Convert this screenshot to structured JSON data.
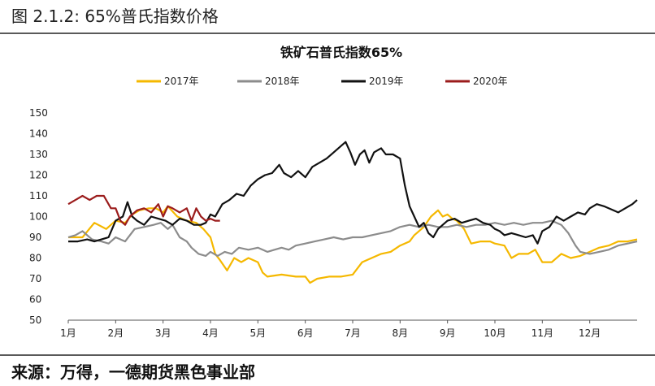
{
  "figure": {
    "caption": "图  2.1.2:    65%普氏指数价格",
    "source": "来源：万得，一德期货黑色事业部"
  },
  "chart_data": {
    "type": "line",
    "title": "铁矿石普氏指数65%",
    "xlabel": "",
    "ylabel": "",
    "x_ticks": [
      "1月",
      "2月",
      "3月",
      "4月",
      "5月",
      "6月",
      "7月",
      "8月",
      "9月",
      "10月",
      "11月",
      "12月"
    ],
    "y_ticks": [
      50,
      60,
      70,
      80,
      90,
      100,
      110,
      120,
      130,
      140,
      150
    ],
    "ylim": [
      50,
      150
    ],
    "xlim": [
      1,
      13
    ],
    "legend_position": "top",
    "grid": false,
    "series": [
      {
        "name": "2017年",
        "color": "#f5b800",
        "points": [
          [
            1,
            90
          ],
          [
            1.3,
            90
          ],
          [
            1.55,
            97
          ],
          [
            1.8,
            94
          ],
          [
            2.0,
            98
          ],
          [
            2.2,
            97
          ],
          [
            2.35,
            101
          ],
          [
            2.5,
            103
          ],
          [
            2.7,
            104
          ],
          [
            2.85,
            104
          ],
          [
            3.0,
            102
          ],
          [
            3.1,
            105
          ],
          [
            3.3,
            100
          ],
          [
            3.5,
            98
          ],
          [
            3.7,
            97
          ],
          [
            3.85,
            94
          ],
          [
            4.0,
            90
          ],
          [
            4.1,
            82
          ],
          [
            4.2,
            79
          ],
          [
            4.35,
            74
          ],
          [
            4.5,
            80
          ],
          [
            4.65,
            78
          ],
          [
            4.8,
            80
          ],
          [
            5.0,
            78
          ],
          [
            5.1,
            73
          ],
          [
            5.2,
            71
          ],
          [
            5.5,
            72
          ],
          [
            5.8,
            71
          ],
          [
            6.0,
            71
          ],
          [
            6.1,
            68
          ],
          [
            6.25,
            70
          ],
          [
            6.5,
            71
          ],
          [
            6.75,
            71
          ],
          [
            7.0,
            72
          ],
          [
            7.2,
            78
          ],
          [
            7.4,
            80
          ],
          [
            7.6,
            82
          ],
          [
            7.8,
            83
          ],
          [
            8.0,
            86
          ],
          [
            8.2,
            88
          ],
          [
            8.3,
            91
          ],
          [
            8.5,
            95
          ],
          [
            8.65,
            100
          ],
          [
            8.8,
            103
          ],
          [
            8.9,
            100
          ],
          [
            9.0,
            101
          ],
          [
            9.1,
            99
          ],
          [
            9.2,
            98
          ],
          [
            9.35,
            94
          ],
          [
            9.5,
            87
          ],
          [
            9.7,
            88
          ],
          [
            9.9,
            88
          ],
          [
            10.0,
            87
          ],
          [
            10.2,
            86
          ],
          [
            10.35,
            80
          ],
          [
            10.5,
            82
          ],
          [
            10.7,
            82
          ],
          [
            10.85,
            84
          ],
          [
            11.0,
            78
          ],
          [
            11.2,
            78
          ],
          [
            11.4,
            82
          ],
          [
            11.6,
            80
          ],
          [
            11.8,
            81
          ],
          [
            12.0,
            83
          ],
          [
            12.2,
            85
          ],
          [
            12.4,
            86
          ],
          [
            12.6,
            88
          ],
          [
            12.8,
            88
          ],
          [
            13,
            89
          ]
        ]
      },
      {
        "name": "2018年",
        "color": "#8c8c8c",
        "points": [
          [
            1,
            90
          ],
          [
            1.15,
            91
          ],
          [
            1.3,
            93
          ],
          [
            1.5,
            89
          ],
          [
            1.7,
            88
          ],
          [
            1.85,
            87
          ],
          [
            2.0,
            90
          ],
          [
            2.2,
            88
          ],
          [
            2.4,
            94
          ],
          [
            2.6,
            95
          ],
          [
            2.8,
            96
          ],
          [
            2.95,
            97
          ],
          [
            3.1,
            94
          ],
          [
            3.2,
            96
          ],
          [
            3.35,
            90
          ],
          [
            3.5,
            88
          ],
          [
            3.6,
            85
          ],
          [
            3.75,
            82
          ],
          [
            3.9,
            81
          ],
          [
            4.0,
            83
          ],
          [
            4.15,
            81
          ],
          [
            4.3,
            83
          ],
          [
            4.45,
            82
          ],
          [
            4.6,
            85
          ],
          [
            4.8,
            84
          ],
          [
            5.0,
            85
          ],
          [
            5.2,
            83
          ],
          [
            5.35,
            84
          ],
          [
            5.5,
            85
          ],
          [
            5.65,
            84
          ],
          [
            5.8,
            86
          ],
          [
            6.0,
            87
          ],
          [
            6.2,
            88
          ],
          [
            6.4,
            89
          ],
          [
            6.6,
            90
          ],
          [
            6.8,
            89
          ],
          [
            7.0,
            90
          ],
          [
            7.2,
            90
          ],
          [
            7.4,
            91
          ],
          [
            7.6,
            92
          ],
          [
            7.8,
            93
          ],
          [
            8.0,
            95
          ],
          [
            8.2,
            96
          ],
          [
            8.4,
            95
          ],
          [
            8.6,
            96
          ],
          [
            8.8,
            95
          ],
          [
            9.0,
            95
          ],
          [
            9.2,
            96
          ],
          [
            9.4,
            95
          ],
          [
            9.6,
            96
          ],
          [
            9.8,
            96
          ],
          [
            10.0,
            97
          ],
          [
            10.2,
            96
          ],
          [
            10.4,
            97
          ],
          [
            10.6,
            96
          ],
          [
            10.8,
            97
          ],
          [
            11.0,
            97
          ],
          [
            11.2,
            98
          ],
          [
            11.4,
            96
          ],
          [
            11.55,
            92
          ],
          [
            11.7,
            86
          ],
          [
            11.8,
            83
          ],
          [
            12.0,
            82
          ],
          [
            12.2,
            83
          ],
          [
            12.4,
            84
          ],
          [
            12.6,
            86
          ],
          [
            12.8,
            87
          ],
          [
            13,
            88
          ]
        ]
      },
      {
        "name": "2019年",
        "color": "#111111",
        "points": [
          [
            1,
            88
          ],
          [
            1.2,
            88
          ],
          [
            1.4,
            89
          ],
          [
            1.55,
            88
          ],
          [
            1.7,
            89
          ],
          [
            1.85,
            90
          ],
          [
            2.0,
            98
          ],
          [
            2.15,
            100
          ],
          [
            2.25,
            107
          ],
          [
            2.35,
            100
          ],
          [
            2.45,
            98
          ],
          [
            2.6,
            96
          ],
          [
            2.75,
            100
          ],
          [
            2.9,
            99
          ],
          [
            3.05,
            98
          ],
          [
            3.2,
            96
          ],
          [
            3.35,
            99
          ],
          [
            3.5,
            98
          ],
          [
            3.65,
            96
          ],
          [
            3.8,
            96
          ],
          [
            3.9,
            97
          ],
          [
            4.0,
            101
          ],
          [
            4.1,
            100
          ],
          [
            4.25,
            106
          ],
          [
            4.4,
            108
          ],
          [
            4.55,
            111
          ],
          [
            4.7,
            110
          ],
          [
            4.85,
            115
          ],
          [
            5.0,
            118
          ],
          [
            5.15,
            120
          ],
          [
            5.3,
            121
          ],
          [
            5.45,
            125
          ],
          [
            5.55,
            121
          ],
          [
            5.7,
            119
          ],
          [
            5.85,
            122
          ],
          [
            6.0,
            119
          ],
          [
            6.15,
            124
          ],
          [
            6.3,
            126
          ],
          [
            6.45,
            128
          ],
          [
            6.6,
            131
          ],
          [
            6.75,
            134
          ],
          [
            6.85,
            136
          ],
          [
            6.95,
            131
          ],
          [
            7.05,
            125
          ],
          [
            7.15,
            130
          ],
          [
            7.25,
            132
          ],
          [
            7.35,
            126
          ],
          [
            7.45,
            131
          ],
          [
            7.6,
            133
          ],
          [
            7.7,
            130
          ],
          [
            7.85,
            130
          ],
          [
            8.0,
            128
          ],
          [
            8.1,
            115
          ],
          [
            8.2,
            105
          ],
          [
            8.3,
            100
          ],
          [
            8.4,
            95
          ],
          [
            8.5,
            97
          ],
          [
            8.6,
            92
          ],
          [
            8.7,
            90
          ],
          [
            8.8,
            94
          ],
          [
            8.9,
            96
          ],
          [
            9.0,
            98
          ],
          [
            9.15,
            99
          ],
          [
            9.3,
            97
          ],
          [
            9.45,
            98
          ],
          [
            9.6,
            99
          ],
          [
            9.75,
            97
          ],
          [
            9.9,
            96
          ],
          [
            10.0,
            94
          ],
          [
            10.1,
            93
          ],
          [
            10.2,
            91
          ],
          [
            10.35,
            92
          ],
          [
            10.5,
            91
          ],
          [
            10.65,
            90
          ],
          [
            10.8,
            91
          ],
          [
            10.9,
            87
          ],
          [
            11.0,
            93
          ],
          [
            11.15,
            95
          ],
          [
            11.3,
            100
          ],
          [
            11.45,
            98
          ],
          [
            11.6,
            100
          ],
          [
            11.75,
            102
          ],
          [
            11.9,
            101
          ],
          [
            12.0,
            104
          ],
          [
            12.15,
            106
          ],
          [
            12.3,
            105
          ],
          [
            12.5,
            103
          ],
          [
            12.6,
            102
          ],
          [
            12.75,
            104
          ],
          [
            12.9,
            106
          ],
          [
            13,
            108
          ]
        ]
      },
      {
        "name": "2020年",
        "color": "#9b1c1c",
        "points": [
          [
            1,
            106
          ],
          [
            1.15,
            108
          ],
          [
            1.3,
            110
          ],
          [
            1.45,
            108
          ],
          [
            1.6,
            110
          ],
          [
            1.75,
            110
          ],
          [
            1.9,
            104
          ],
          [
            2.0,
            104
          ],
          [
            2.1,
            98
          ],
          [
            2.2,
            96
          ],
          [
            2.3,
            100
          ],
          [
            2.45,
            103
          ],
          [
            2.6,
            104
          ],
          [
            2.75,
            102
          ],
          [
            2.9,
            106
          ],
          [
            3.0,
            100
          ],
          [
            3.1,
            105
          ],
          [
            3.2,
            104
          ],
          [
            3.35,
            102
          ],
          [
            3.5,
            104
          ],
          [
            3.6,
            98
          ],
          [
            3.7,
            104
          ],
          [
            3.8,
            100
          ],
          [
            3.9,
            98
          ],
          [
            4.0,
            99
          ],
          [
            4.1,
            98
          ],
          [
            4.2,
            98
          ]
        ]
      }
    ]
  }
}
